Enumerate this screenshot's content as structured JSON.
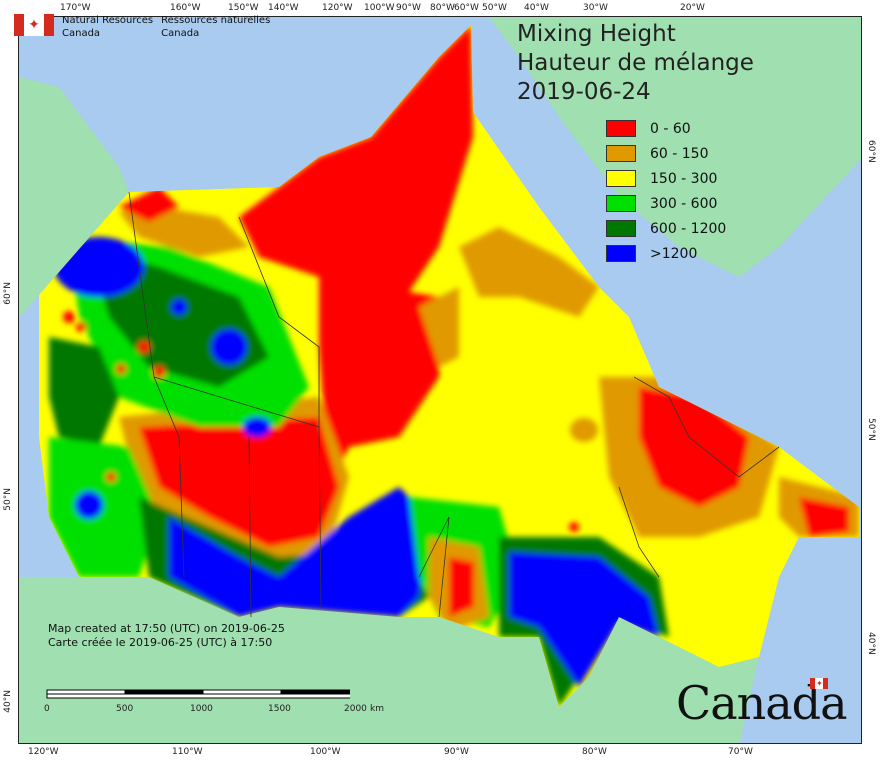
{
  "agency": {
    "flag_icon": "canada-flag-icon",
    "name_en_1": "Natural Resources",
    "name_en_2": "Canada",
    "name_fr_1": "Ressources naturelles",
    "name_fr_2": "Canada"
  },
  "title": {
    "en": "Mixing Height",
    "fr": "Hauteur de mélange",
    "date": "2019-06-24"
  },
  "legend": [
    {
      "label": "0 - 60",
      "color": "#ff0000"
    },
    {
      "label": "60 - 150",
      "color": "#e09a00"
    },
    {
      "label": "150 - 300",
      "color": "#ffff00"
    },
    {
      "label": "300 - 600",
      "color": "#00e000"
    },
    {
      "label": "600 - 1200",
      "color": "#007800"
    },
    {
      "label": ">1200",
      "color": "#0000ff"
    }
  ],
  "colors": {
    "ocean": "#a8cbef",
    "land_outside": "#9fdfb0",
    "greenland": "#9fdfb0",
    "boundary": "#333333"
  },
  "graticule": {
    "top": [
      "170°W",
      "160°W",
      "150°W",
      "140°W",
      "120°W",
      "100°W",
      "90°W",
      "80°W",
      "60°W",
      "50°W",
      "40°W",
      "30°W",
      "20°W"
    ],
    "bottom": [
      "120°W",
      "110°W",
      "100°W",
      "90°W",
      "80°W",
      "70°W"
    ],
    "left": [
      "60°N",
      "50°N",
      "40°N"
    ],
    "right": [
      "60°N",
      "50°N",
      "40°N"
    ]
  },
  "credits": {
    "created_en": "Map created at 17:50 (UTC) on 2019-06-25",
    "created_fr": "Carte créée le 2019-06-25 (UTC) à 17:50"
  },
  "scale": {
    "labels": [
      "0",
      "500",
      "1000",
      "1500",
      "2000"
    ],
    "unit": "km"
  },
  "wordmark": {
    "text": "Canada",
    "flag_icon": "canada-flag-icon"
  }
}
